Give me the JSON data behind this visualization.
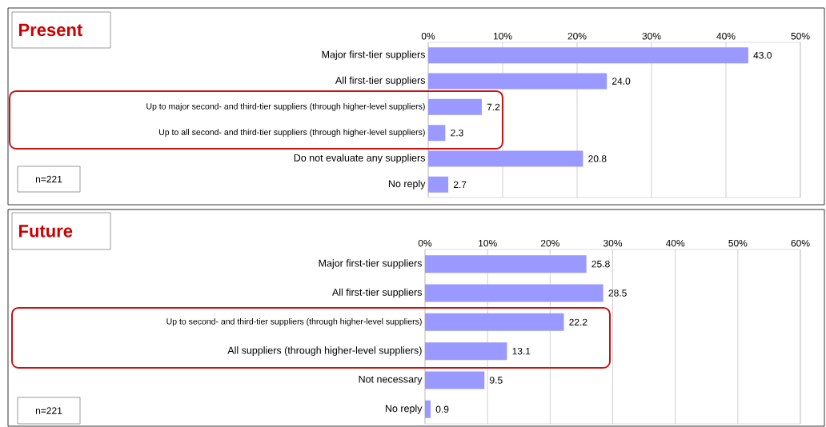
{
  "chart_data": [
    {
      "type": "bar",
      "orientation": "horizontal",
      "title": "Present",
      "categories": [
        "Major first-tier suppliers",
        "All first-tier suppliers",
        "Up to major second- and third-tier  suppliers (through higher-level suppliers)",
        "Up to all second- and third-tier  suppliers (through higher-level suppliers)",
        "Do not evaluate any suppliers",
        "No reply"
      ],
      "values": [
        43.0,
        24.0,
        7.2,
        2.3,
        20.8,
        2.7
      ],
      "value_labels": [
        "43.0",
        "24.0",
        "7.2",
        "2.3",
        "20.8",
        "2.7"
      ],
      "color": "#9999ff",
      "xlim": [
        0,
        50
      ],
      "xticks": [
        {
          "value": 0,
          "label": "0%"
        },
        {
          "value": 10,
          "label": "10%"
        },
        {
          "value": 20,
          "label": "20%"
        },
        {
          "value": 30,
          "label": "30%"
        },
        {
          "value": 40,
          "label": "40%"
        },
        {
          "value": 50,
          "label": "50%"
        }
      ],
      "grid": "x",
      "annotations": [
        "n=221"
      ]
    },
    {
      "type": "bar",
      "orientation": "horizontal",
      "title": "Future",
      "categories": [
        "Major first-tier suppliers",
        "All first-tier suppliers",
        "Up to second- and third-tier  suppliers (through higher-level suppliers)",
        "All suppliers (through higher-level suppliers)",
        "Not necessary",
        "No reply"
      ],
      "values": [
        25.8,
        28.5,
        22.2,
        13.1,
        9.5,
        0.9
      ],
      "value_labels": [
        "25.8",
        "28.5",
        "22.2",
        "13.1",
        "9.5",
        "0.9"
      ],
      "color": "#9999ff",
      "xlim": [
        0,
        60
      ],
      "xticks": [
        {
          "value": 0,
          "label": "0%"
        },
        {
          "value": 10,
          "label": "10%"
        },
        {
          "value": 20,
          "label": "20%"
        },
        {
          "value": 30,
          "label": "30%"
        },
        {
          "value": 40,
          "label": "40%"
        },
        {
          "value": 50,
          "label": "50%"
        },
        {
          "value": 60,
          "label": "60%"
        }
      ],
      "grid": "x",
      "annotations": [
        "n=221"
      ]
    }
  ]
}
